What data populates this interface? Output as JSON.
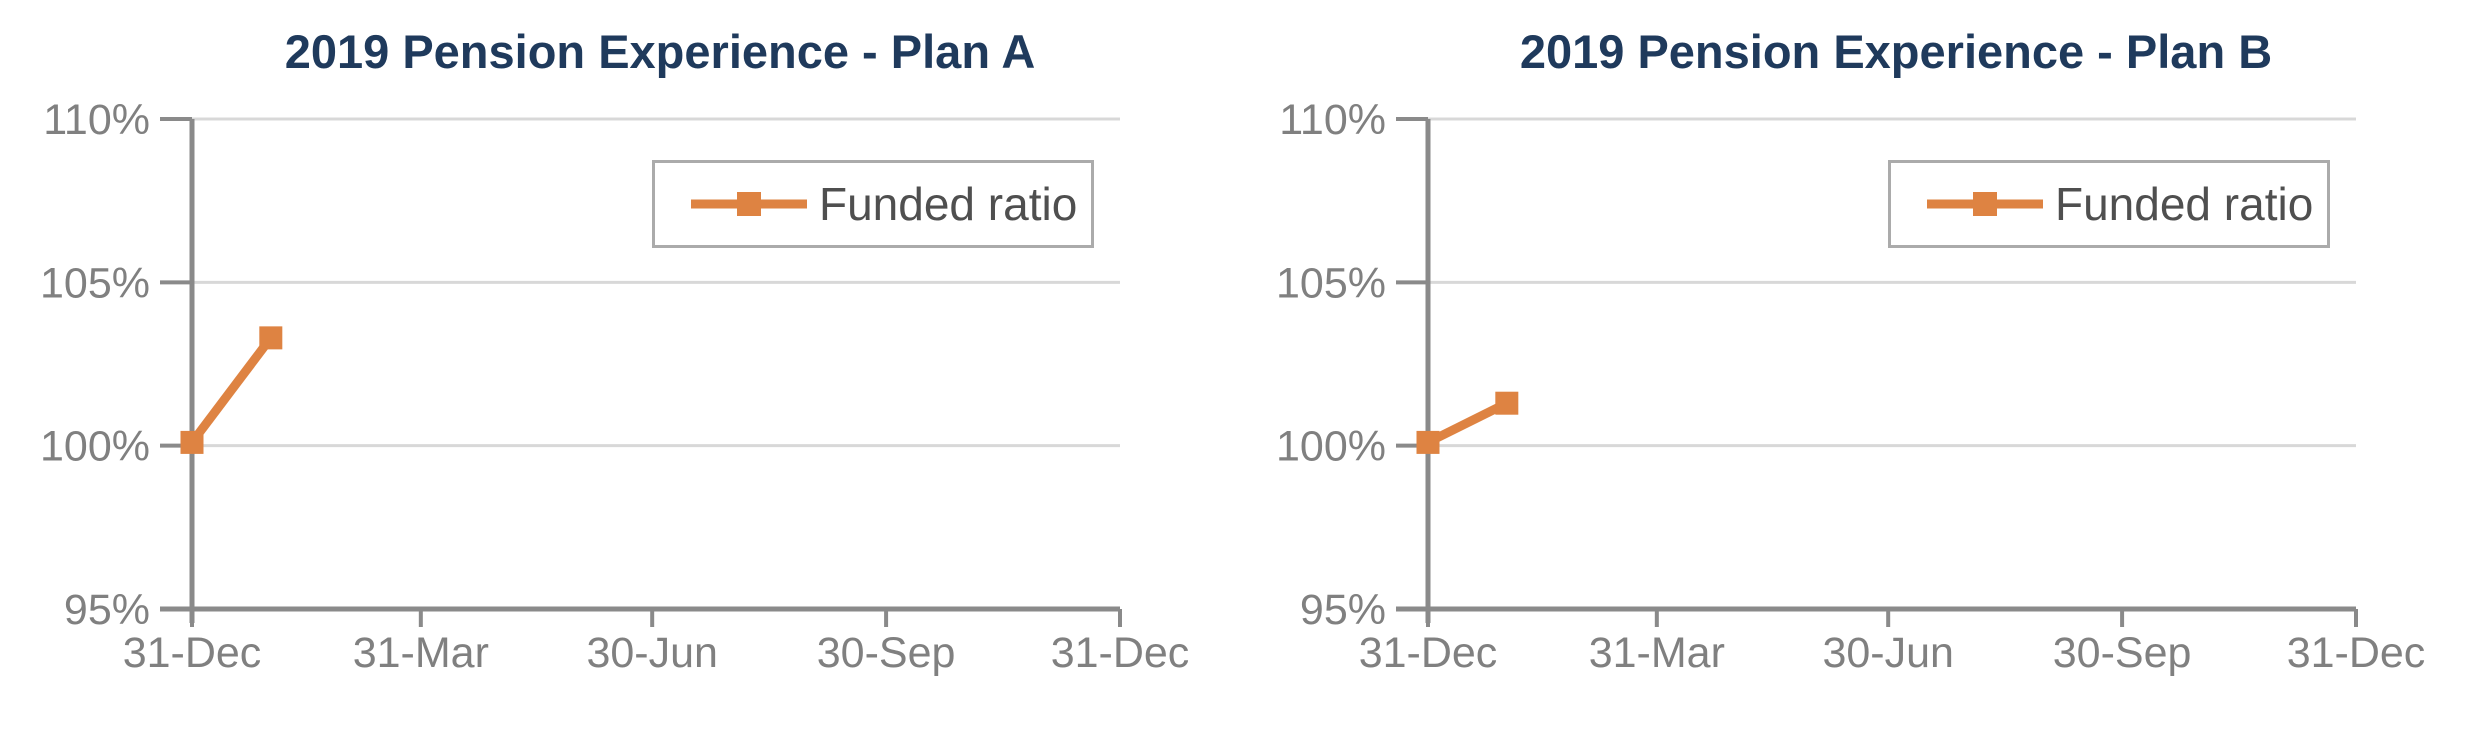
{
  "colors": {
    "background": "#FFFFFF",
    "title": "#1F3A5C",
    "axis": "#8A8A8A",
    "tick_label": "#808080",
    "gridline": "#D8D8D8",
    "series": "#DE8342",
    "legend_border": "#ABABAB",
    "legend_text": "#4F4F4F"
  },
  "chart_data": [
    {
      "type": "line",
      "title": "2019 Pension Experience - Plan A",
      "xlabel": "",
      "ylabel": "",
      "ylim": [
        95,
        110
      ],
      "y_tick_values": [
        110,
        105,
        100,
        95
      ],
      "y_tick_labels": [
        "110%",
        "105%",
        "100%",
        "95%"
      ],
      "x_range_days": [
        0,
        365
      ],
      "x_tick_days": [
        0,
        90,
        181,
        273,
        365
      ],
      "x_tick_labels": [
        "31-Dec",
        "31-Mar",
        "30-Jun",
        "30-Sep",
        "31-Dec"
      ],
      "grid": "horizontal",
      "legend": {
        "position": "upper right",
        "entries": [
          "Funded ratio"
        ]
      },
      "series": [
        {
          "name": "Funded ratio",
          "marker": "square",
          "points": [
            {
              "x_label": "31-Dec",
              "x_day": 0,
              "y_pct": 100.1
            },
            {
              "x_label": "31-Jan",
              "x_day": 31,
              "y_pct": 103.3
            }
          ]
        }
      ]
    },
    {
      "type": "line",
      "title": "2019 Pension Experience - Plan B",
      "xlabel": "",
      "ylabel": "",
      "ylim": [
        95,
        110
      ],
      "y_tick_values": [
        110,
        105,
        100,
        95
      ],
      "y_tick_labels": [
        "110%",
        "105%",
        "100%",
        "95%"
      ],
      "x_range_days": [
        0,
        365
      ],
      "x_tick_days": [
        0,
        90,
        181,
        273,
        365
      ],
      "x_tick_labels": [
        "31-Dec",
        "31-Mar",
        "30-Jun",
        "30-Sep",
        "31-Dec"
      ],
      "grid": "horizontal",
      "legend": {
        "position": "upper right",
        "entries": [
          "Funded ratio"
        ]
      },
      "series": [
        {
          "name": "Funded ratio",
          "marker": "square",
          "points": [
            {
              "x_label": "31-Dec",
              "x_day": 0,
              "y_pct": 100.1
            },
            {
              "x_label": "31-Jan",
              "x_day": 31,
              "y_pct": 101.3
            }
          ]
        }
      ]
    }
  ]
}
